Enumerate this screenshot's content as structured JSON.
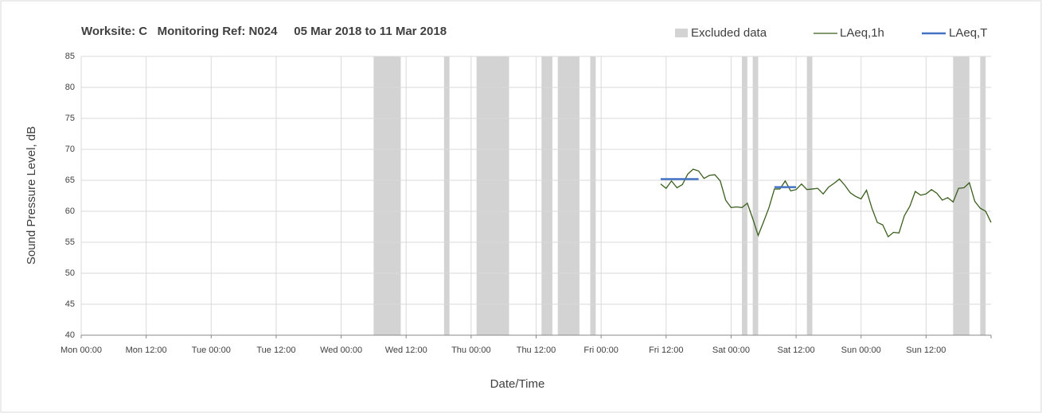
{
  "chart_data": {
    "type": "line",
    "title": "Worksite: C   Monitoring Ref: N024     05 Mar 2018 to 11 Mar 2018",
    "xlabel": "Date/Time",
    "ylabel": "Sound Pressure Level, dB",
    "xlim": [
      0,
      168
    ],
    "xticks": [
      {
        "value": 0,
        "label": "Mon 00:00"
      },
      {
        "value": 12,
        "label": "Mon 12:00"
      },
      {
        "value": 24,
        "label": "Tue 00:00"
      },
      {
        "value": 36,
        "label": "Tue 12:00"
      },
      {
        "value": 48,
        "label": "Wed 00:00"
      },
      {
        "value": 60,
        "label": "Wed 12:00"
      },
      {
        "value": 72,
        "label": "Thu 00:00"
      },
      {
        "value": 84,
        "label": "Thu 12:00"
      },
      {
        "value": 96,
        "label": "Fri 00:00"
      },
      {
        "value": 108,
        "label": "Fri 12:00"
      },
      {
        "value": 120,
        "label": "Sat 00:00"
      },
      {
        "value": 132,
        "label": "Sat 12:00"
      },
      {
        "value": 144,
        "label": "Sun 00:00"
      },
      {
        "value": 156,
        "label": "Sun 12:00"
      }
    ],
    "ylim": [
      40,
      85
    ],
    "yticks": [
      40,
      45,
      50,
      55,
      60,
      65,
      70,
      75,
      80,
      85
    ],
    "grid": true,
    "excluded": {
      "name": "Excluded data",
      "color": "#d3d3d3",
      "ranges": [
        [
          54,
          59
        ],
        [
          67,
          68
        ],
        [
          73,
          79
        ],
        [
          85,
          87
        ],
        [
          88,
          92
        ],
        [
          94,
          95
        ],
        [
          122,
          123
        ],
        [
          124,
          125
        ],
        [
          134,
          135
        ],
        [
          161,
          164
        ],
        [
          166,
          167
        ]
      ]
    },
    "series": [
      {
        "name": "LAeq,1h",
        "color": "#3a5f1e",
        "x": [
          107,
          108,
          109,
          110,
          111,
          112,
          113,
          114,
          115,
          116,
          117,
          118,
          119,
          120,
          121,
          122,
          123,
          124,
          125,
          126,
          127,
          128,
          129,
          130,
          131,
          132,
          133,
          134,
          135,
          136,
          137,
          138,
          139,
          140,
          141,
          142,
          143,
          144,
          145,
          146,
          147,
          148,
          149,
          150,
          151,
          152,
          153,
          154,
          155,
          156,
          157,
          158,
          159,
          160,
          161,
          162,
          163,
          164,
          165,
          166,
          167,
          168
        ],
        "values": [
          64.4,
          63.7,
          64.9,
          63.8,
          64.3,
          66.0,
          66.8,
          66.5,
          65.3,
          65.8,
          65.9,
          64.9,
          61.8,
          60.6,
          60.7,
          60.6,
          61.3,
          58.8,
          56.1,
          58.3,
          60.6,
          63.6,
          63.6,
          64.9,
          63.3,
          63.5,
          64.4,
          63.5,
          63.6,
          63.7,
          62.8,
          63.9,
          64.5,
          65.2,
          64.2,
          63.0,
          62.4,
          62.0,
          63.4,
          60.5,
          58.2,
          57.8,
          55.9,
          56.6,
          56.5,
          59.3,
          60.8,
          63.2,
          62.6,
          62.8,
          63.5,
          62.9,
          61.8,
          62.2,
          61.5,
          63.7,
          63.8,
          64.6,
          61.6,
          60.5,
          60.0,
          58.2
        ]
      },
      {
        "name": "LAeq,T",
        "color": "#4472c4",
        "x": [
          107,
          114,
          null,
          128,
          132
        ],
        "values": [
          65.2,
          65.2,
          null,
          63.9,
          63.9
        ]
      }
    ]
  }
}
